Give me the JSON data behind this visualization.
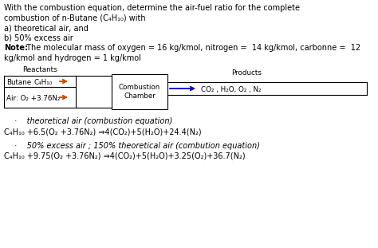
{
  "background_color": "#ffffff",
  "intro_lines": [
    "With the combustion equation, determine the air-fuel ratio for the complete",
    "combustion of n-Butane (C₄H₁₀) with",
    "a) theoretical air, and",
    "b) 50% excess air"
  ],
  "note_bold": "Note:",
  "note_rest": " The molecular mass of oxygen = 16 kg/kmol, nitrogen =  14 kg/kmol, carbonne =  12",
  "note_line2": "kg/kmol and hydrogen = 1 kg/kmol",
  "reactants_label": "Reactants",
  "butane_label": "Butane",
  "butane_formula": "C₄H₁₀",
  "air_label": "Air: O₂ +3.76N₂",
  "chamber_label": "Combustion\nChamber",
  "products_label": "Products",
  "products_formula": "CO₂ , H₂O, O₂ , N₂",
  "bullet1": "·    theoretical air (combustion equation)",
  "eq1": "C₄H₁₀ +6.5(O₂ +3.76N₂) ⇒4(CO₂)+5(H₂O)+24.4(N₂)",
  "bullet2": "·    50% excess air ; 150% theoretical air (combution equation)",
  "eq2": "C₄H₁₀ +9.75(O₂ +3.76N₂) ⇒4(CO₂)+5(H₂O)+3.25(O₂)+36.7(N₂)",
  "fs_main": 7.0,
  "fs_small": 6.3,
  "arrow_orange": "#cc4400",
  "arrow_blue": "#0000cc"
}
